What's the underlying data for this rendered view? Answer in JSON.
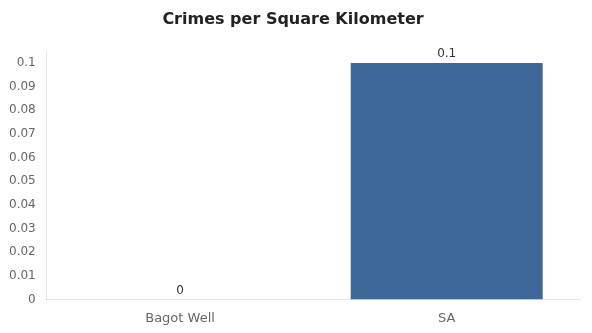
{
  "chart_data": {
    "type": "bar",
    "title": "Crimes per Square Kilometer",
    "categories": [
      "Bagot Well",
      "SA"
    ],
    "values": [
      0,
      0.1
    ],
    "color": "#3d6899",
    "ylim": [
      0,
      0.105
    ],
    "yticks": [
      0,
      0.01,
      0.02,
      0.03,
      0.04,
      0.05,
      0.06,
      0.07,
      0.08,
      0.09,
      0.1
    ],
    "grid": false,
    "data_labels": true
  }
}
